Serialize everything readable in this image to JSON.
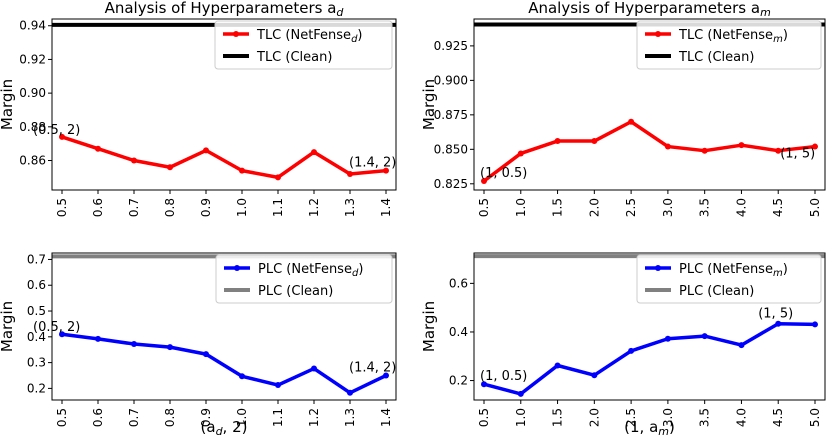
{
  "chart_data": [
    {
      "type": "line",
      "title": "Analysis of Hyperparameters a",
      "title_sub": "d",
      "ylabel": "Margin",
      "xlabel": "",
      "x": [
        "0.5",
        "0.6",
        "0.7",
        "0.8",
        "0.9",
        "1.0",
        "1.1",
        "1.2",
        "1.3",
        "1.4"
      ],
      "ylim": [
        0.8425,
        0.944
      ],
      "yticks": [
        "0.86",
        "0.88",
        "0.90",
        "0.92",
        "0.94"
      ],
      "ytick_values": [
        0.86,
        0.88,
        0.9,
        0.92,
        0.94
      ],
      "series": [
        {
          "name": "TLC (NetFense_",
          "name_sub": "d",
          "name_end": ")",
          "color": "#ff0000",
          "marker": true,
          "values": [
            0.874,
            0.867,
            0.86,
            0.856,
            0.866,
            0.854,
            0.85,
            0.865,
            0.852,
            0.854
          ]
        }
      ],
      "hline": {
        "name": "TLC (Clean)",
        "color": "#000000",
        "value": 0.9405
      },
      "annotations": [
        {
          "text": "(0.5, 2)",
          "index": 0
        },
        {
          "text": "(1.4, 2)",
          "index": 9
        }
      ]
    },
    {
      "type": "line",
      "title": "Analysis of Hyperparameters a",
      "title_sub": "m",
      "ylabel": "Margin",
      "xlabel": "",
      "x": [
        "0.5",
        "1.0",
        "1.5",
        "2.0",
        "2.5",
        "3.0",
        "3.5",
        "4.0",
        "4.5",
        "5.0"
      ],
      "ylim": [
        0.8205,
        0.9445
      ],
      "yticks": [
        "0.825",
        "0.850",
        "0.875",
        "0.900",
        "0.925"
      ],
      "ytick_values": [
        0.825,
        0.85,
        0.875,
        0.9,
        0.925
      ],
      "series": [
        {
          "name": "TLC (NetFense_",
          "name_sub": "m",
          "name_end": ")",
          "color": "#ff0000",
          "marker": true,
          "values": [
            0.827,
            0.847,
            0.856,
            0.856,
            0.87,
            0.852,
            0.849,
            0.853,
            0.849,
            0.852
          ]
        }
      ],
      "hline": {
        "name": "TLC (Clean)",
        "color": "#000000",
        "value": 0.9405
      },
      "annotations": [
        {
          "text": "(1, 0.5)",
          "index": 0
        },
        {
          "text": "(1, 5)",
          "index": 8
        }
      ]
    },
    {
      "type": "line",
      "title": "",
      "ylabel": "Margin",
      "xlabel": "(a",
      "xlabel_sub": "d",
      "xlabel_end": ", 2)",
      "x": [
        "0.5",
        "0.6",
        "0.7",
        "0.8",
        "0.9",
        "1.0",
        "1.1",
        "1.2",
        "1.3",
        "1.4"
      ],
      "ylim": [
        0.155,
        0.725
      ],
      "yticks": [
        "0.2",
        "0.3",
        "0.4",
        "0.5",
        "0.6",
        "0.7"
      ],
      "ytick_values": [
        0.2,
        0.3,
        0.4,
        0.5,
        0.6,
        0.7
      ],
      "series": [
        {
          "name": "PLC (NetFense_",
          "name_sub": "d",
          "name_end": ")",
          "color": "#0000ff",
          "marker": true,
          "values": [
            0.41,
            0.392,
            0.372,
            0.36,
            0.333,
            0.247,
            0.213,
            0.277,
            0.183,
            0.25
          ]
        }
      ],
      "hline": {
        "name": "PLC (Clean)",
        "color": "#808080",
        "value": 0.712
      },
      "annotations": [
        {
          "text": "(0.5, 2)",
          "index": 0
        },
        {
          "text": "(1.4, 2)",
          "index": 9
        }
      ]
    },
    {
      "type": "line",
      "title": "",
      "ylabel": "Margin",
      "xlabel": "(1, a",
      "xlabel_sub": "m",
      "xlabel_end": ")",
      "x": [
        "0.5",
        "1.0",
        "1.5",
        "2.0",
        "2.5",
        "3.0",
        "3.5",
        "4.0",
        "4.5",
        "5.0"
      ],
      "ylim": [
        0.12,
        0.725
      ],
      "yticks": [
        "0.2",
        "0.4",
        "0.6"
      ],
      "ytick_values": [
        0.2,
        0.4,
        0.6
      ],
      "series": [
        {
          "name": "PLC (NetFense_",
          "name_sub": "m",
          "name_end": ")",
          "color": "#0000ff",
          "marker": true,
          "values": [
            0.185,
            0.145,
            0.262,
            0.222,
            0.322,
            0.372,
            0.383,
            0.346,
            0.434,
            0.431
          ]
        }
      ],
      "hline": {
        "name": "PLC (Clean)",
        "color": "#808080",
        "value": 0.712
      },
      "annotations": [
        {
          "text": "(1, 0.5)",
          "index": 0
        },
        {
          "text": "(1, 5)",
          "index": 8
        }
      ]
    }
  ]
}
